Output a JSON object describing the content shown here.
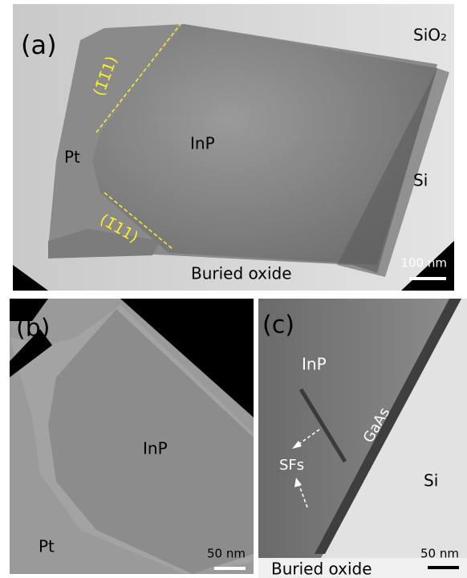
{
  "panel_a": {
    "label": "(a)",
    "sio2": "SiO₂",
    "facet_top": "(1̄1̄1)",
    "facet_bottom": "(1̄11)",
    "pt": "Pt",
    "inp": "InP",
    "si": "Si",
    "oxide": "Buried oxide",
    "scale": "100 nm"
  },
  "panel_b": {
    "label": "(b)",
    "inp": "InP",
    "pt": "Pt",
    "scale": "50 nm"
  },
  "panel_c": {
    "label": "(c)",
    "inp": "InP",
    "gaas": "GaAs",
    "sfs": "SFs",
    "si": "Si",
    "scale": "50 nm",
    "oxide": "Buried oxide"
  }
}
